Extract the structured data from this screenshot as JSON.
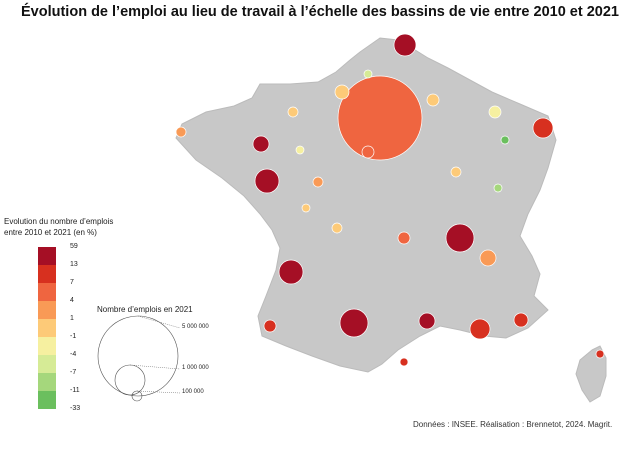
{
  "title": "Évolution de l’emploi au lieu de travail à l’échelle des bassins de vie entre 2010 et 2021",
  "legend": {
    "color_title_line1": "Evolution du nombre d’emplois",
    "color_title_line2": "entre 2010 et 2021 (en %)",
    "classes": [
      {
        "label": "59",
        "color": "#a50f25"
      },
      {
        "label": "13",
        "color": "#d7301f"
      },
      {
        "label": "7",
        "color": "#ef6540"
      },
      {
        "label": "4",
        "color": "#f99a56"
      },
      {
        "label": "1",
        "color": "#fdca78"
      },
      {
        "label": "-1",
        "color": "#f6f0a0"
      },
      {
        "label": "-4",
        "color": "#d6eb96"
      },
      {
        "label": "-7",
        "color": "#a5d77c"
      },
      {
        "label": "-11",
        "color": "#6bbf5e"
      },
      {
        "label": "-33",
        "color": "#2a9a4a"
      }
    ],
    "bottom_label": "-33",
    "size_title": "Nombre d’emplois en 2021",
    "size_labels": [
      "5 000 000",
      "1 000 000",
      "100 000"
    ]
  },
  "credits": "Données : INSEE. Réalisation : Brennetot, 2024. Magrit.",
  "map_colors": {
    "land": "#c8c8c8",
    "border": "#ffffff"
  }
}
